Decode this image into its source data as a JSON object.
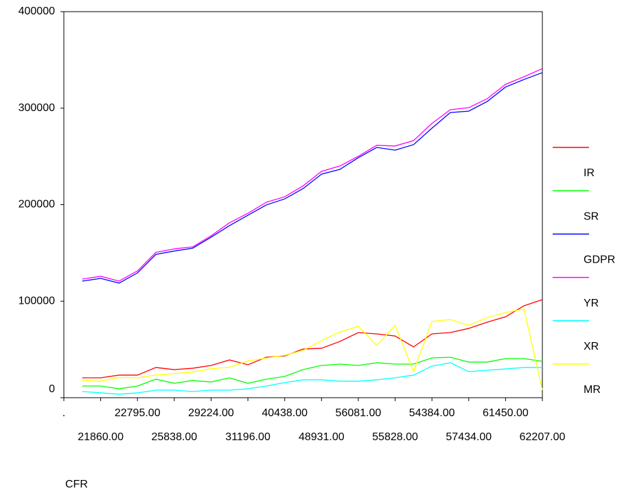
{
  "chart_data": {
    "type": "line",
    "x_label": "CFR",
    "categories": [
      ".",
      null,
      "21860.00",
      null,
      "22795.00",
      null,
      "25838.00",
      null,
      "29224.00",
      null,
      "31196.00",
      null,
      "40438.00",
      null,
      "48931.00",
      null,
      "56081.00",
      null,
      "55828.00",
      null,
      "54384.00",
      null,
      "57434.00",
      null,
      "61450.00",
      null,
      "62207.00"
    ],
    "ylim": [
      0,
      400000
    ],
    "yticks": [
      0,
      100000,
      200000,
      300000,
      400000
    ],
    "series": [
      {
        "name": "IR",
        "color": "#ff0000",
        "values": [
          null,
          20600,
          20600,
          23400,
          23400,
          31300,
          29100,
          30500,
          33400,
          39100,
          34100,
          41900,
          43300,
          50400,
          51200,
          58300,
          67500,
          66100,
          63900,
          52600,
          66100,
          67500,
          71800,
          78200,
          83800,
          95200,
          101600
        ]
      },
      {
        "name": "SR",
        "color": "#00ff00",
        "values": [
          null,
          12100,
          12100,
          9200,
          12100,
          19200,
          14900,
          17800,
          16300,
          20600,
          14900,
          19200,
          22000,
          29100,
          33400,
          34800,
          33400,
          36200,
          34800,
          34800,
          41200,
          41900,
          36900,
          36900,
          40500,
          40500,
          37600
        ]
      },
      {
        "name": "GDPR",
        "color": "#0000ff",
        "values": [
          null,
          120800,
          123600,
          118700,
          129300,
          148500,
          152000,
          154900,
          166300,
          178300,
          189000,
          199700,
          206000,
          216700,
          231600,
          236600,
          248700,
          259300,
          256500,
          262200,
          279200,
          295500,
          296900,
          306900,
          321900,
          329700,
          336800
        ]
      },
      {
        "name": "YR",
        "color": "#ff00ff",
        "values": [
          null,
          122900,
          125800,
          120800,
          131400,
          150600,
          154200,
          156300,
          167700,
          181200,
          191100,
          202500,
          208200,
          219500,
          234500,
          240100,
          250100,
          261500,
          260800,
          266400,
          284200,
          298400,
          300500,
          309800,
          324700,
          332500,
          341000
        ]
      },
      {
        "name": "XR",
        "color": "#00ffff",
        "values": [
          null,
          6400,
          5000,
          3600,
          5000,
          7800,
          7800,
          6400,
          7800,
          7800,
          9200,
          12100,
          15600,
          18500,
          18500,
          17100,
          17100,
          18500,
          20600,
          23400,
          32700,
          36200,
          27000,
          28400,
          29800,
          31300,
          31300
        ]
      },
      {
        "name": "MR",
        "color": "#ffff00",
        "values": [
          null,
          18000,
          17000,
          21000,
          20500,
          23500,
          25000,
          26500,
          30000,
          31500,
          38000,
          41000,
          44000,
          49000,
          59000,
          68000,
          74000,
          54000,
          75000,
          27000,
          79000,
          81000,
          75000,
          83000,
          88000,
          92000,
          8000
        ]
      }
    ]
  }
}
